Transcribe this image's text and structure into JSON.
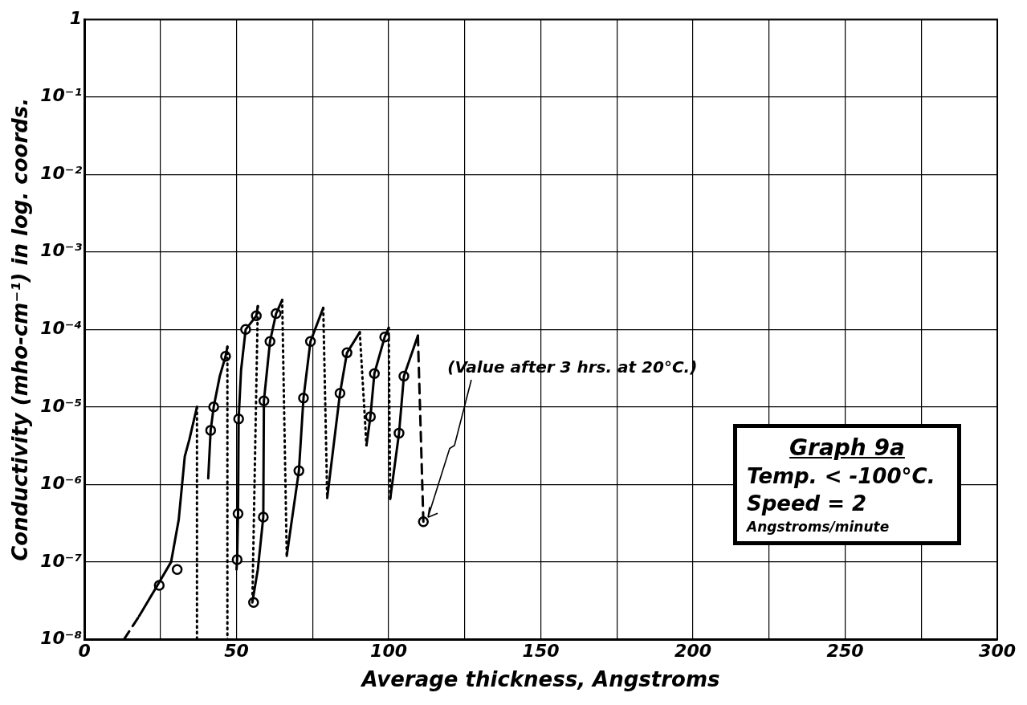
{
  "chart_data": {
    "type": "line",
    "title": "Graph 9a",
    "xlabel": "Average thickness, Angstroms",
    "ylabel": "Conductivity (mho-cm⁻¹) in log. coords.",
    "log": "y",
    "grid": true,
    "xlim": [
      0,
      300
    ],
    "ylim": [
      1e-08,
      1
    ],
    "xticks": [
      0,
      {
        "value": 25,
        "label": null
      },
      50,
      {
        "value": 75,
        "label": null
      },
      100,
      {
        "value": 125,
        "label": null
      },
      150,
      {
        "value": 175,
        "label": null
      },
      200,
      {
        "value": 225,
        "label": null
      },
      250,
      {
        "value": 275,
        "label": null
      },
      300
    ],
    "yticks": [
      {
        "value": 1e-08,
        "label": "10⁻⁸"
      },
      {
        "value": 1e-07,
        "label": "10⁻⁷"
      },
      {
        "value": 1e-06,
        "label": "10⁻⁶"
      },
      {
        "value": 1e-05,
        "label": "10⁻⁵"
      },
      {
        "value": 0.0001,
        "label": "10⁻⁴"
      },
      {
        "value": 0.001,
        "label": "10⁻³"
      },
      {
        "value": 0.01,
        "label": "10⁻²"
      },
      {
        "value": 0.1,
        "label": "10⁻¹"
      },
      1
    ],
    "annotations": [
      {
        "text": "(Value after 3 hrs. at 20°C.)",
        "x": 111.4,
        "y": 3.3e-07
      },
      "Temp. < -100°C.",
      "Speed = 2",
      "Angstroms/minute"
    ],
    "series": [
      {
        "type": "line",
        "line_style": "dashed",
        "color": "#000000",
        "x": [
          13,
          18
        ],
        "values": [
          1e-08,
          2e-08
        ]
      },
      {
        "type": "line",
        "line_style": "solid",
        "color": "#000000",
        "x": [
          18,
          24,
          28.5,
          31,
          33,
          34.5,
          37
        ],
        "values": [
          2e-08,
          5e-08,
          1e-07,
          3.5e-07,
          2.3e-06,
          3.8e-06,
          1e-05
        ]
      },
      {
        "type": "line",
        "line_style": "dotted",
        "color": "#000000",
        "x": [
          37,
          37
        ],
        "values": [
          1e-05,
          1e-08
        ]
      },
      {
        "type": "line",
        "line_style": "solid",
        "color": "#000000",
        "x": [
          40.7,
          41.5,
          42.5,
          44.5,
          46.4,
          47
        ],
        "values": [
          1.2e-06,
          5e-06,
          1e-05,
          2.5e-05,
          4.5e-05,
          6e-05
        ]
      },
      {
        "type": "line",
        "line_style": "dotted",
        "color": "#000000",
        "x": [
          47,
          47
        ],
        "values": [
          6e-05,
          1e-08
        ]
      },
      {
        "type": "line",
        "line_style": "solid",
        "color": "#000000",
        "x": [
          50,
          50.2,
          50.5,
          50.7,
          51.5,
          53,
          56.5,
          57
        ],
        "values": [
          8e-08,
          1.07e-07,
          4.2e-07,
          7e-06,
          3e-05,
          0.0001,
          0.00015,
          0.0002
        ]
      },
      {
        "type": "line",
        "line_style": "dotted",
        "color": "#000000",
        "x": [
          57,
          55.2
        ],
        "values": [
          0.0002,
          3e-08
        ]
      },
      {
        "type": "line",
        "line_style": "solid",
        "color": "#000000",
        "x": [
          55.2,
          57,
          58.8,
          59,
          61,
          63,
          65
        ],
        "values": [
          3e-08,
          8e-08,
          3.8e-07,
          1.2e-05,
          7e-05,
          0.00016,
          0.00024
        ]
      },
      {
        "type": "line",
        "line_style": "dotted",
        "color": "#000000",
        "x": [
          65,
          66.5
        ],
        "values": [
          0.00024,
          1.2e-07
        ]
      },
      {
        "type": "line",
        "line_style": "solid",
        "color": "#000000",
        "x": [
          66.5,
          70.5,
          72,
          74.3,
          78.5
        ],
        "values": [
          1.2e-07,
          1.5e-06,
          1.3e-05,
          7e-05,
          0.00019
        ]
      },
      {
        "type": "line",
        "line_style": "dotted",
        "color": "#000000",
        "x": [
          78.5,
          79.8
        ],
        "values": [
          0.00019,
          6.7e-07
        ]
      },
      {
        "type": "line",
        "line_style": "solid",
        "color": "#000000",
        "x": [
          79.8,
          84,
          86.3,
          90.5
        ],
        "values": [
          6.7e-07,
          1.5e-05,
          5e-05,
          9.2e-05
        ]
      },
      {
        "type": "line",
        "line_style": "dotted",
        "color": "#000000",
        "x": [
          90.5,
          92.7
        ],
        "values": [
          9.2e-05,
          3.2e-06
        ]
      },
      {
        "type": "line",
        "line_style": "solid",
        "color": "#000000",
        "x": [
          92.7,
          94,
          95.3,
          98.7,
          100
        ],
        "values": [
          3.2e-06,
          7.5e-06,
          2.7e-05,
          8e-05,
          0.000105
        ]
      },
      {
        "type": "line",
        "line_style": "dotted",
        "color": "#000000",
        "x": [
          100,
          100.5
        ],
        "values": [
          0.000105,
          6.5e-07
        ]
      },
      {
        "type": "line",
        "line_style": "solid",
        "color": "#000000",
        "x": [
          100.5,
          103.4,
          105,
          109.6
        ],
        "values": [
          6.5e-07,
          4.6e-06,
          2.5e-05,
          8.3e-05
        ]
      },
      {
        "type": "line",
        "line_style": "dashed",
        "color": "#000000",
        "x": [
          109.6,
          111.4
        ],
        "values": [
          8.3e-05,
          3.3e-07
        ]
      },
      {
        "type": "scatter",
        "marker": "circle",
        "color": "#000000",
        "x": [
          24.6,
          30.5,
          41.5,
          42.5,
          46.4,
          50.2,
          50.5,
          50.7,
          53,
          56.5,
          55.6,
          58.8,
          59,
          61,
          63,
          70.5,
          72,
          74.3,
          84,
          86.3,
          94,
          95.3,
          98.7,
          103.4,
          105,
          111.4
        ],
        "values": [
          5e-08,
          8e-08,
          5e-06,
          1e-05,
          4.5e-05,
          1.07e-07,
          4.2e-07,
          7e-06,
          0.0001,
          0.00015,
          3e-08,
          3.8e-07,
          1.2e-05,
          7e-05,
          0.00016,
          1.5e-06,
          1.3e-05,
          7e-05,
          1.5e-05,
          5e-05,
          7.5e-06,
          2.7e-05,
          8e-05,
          4.6e-06,
          2.5e-05,
          3.3e-07
        ]
      }
    ]
  }
}
